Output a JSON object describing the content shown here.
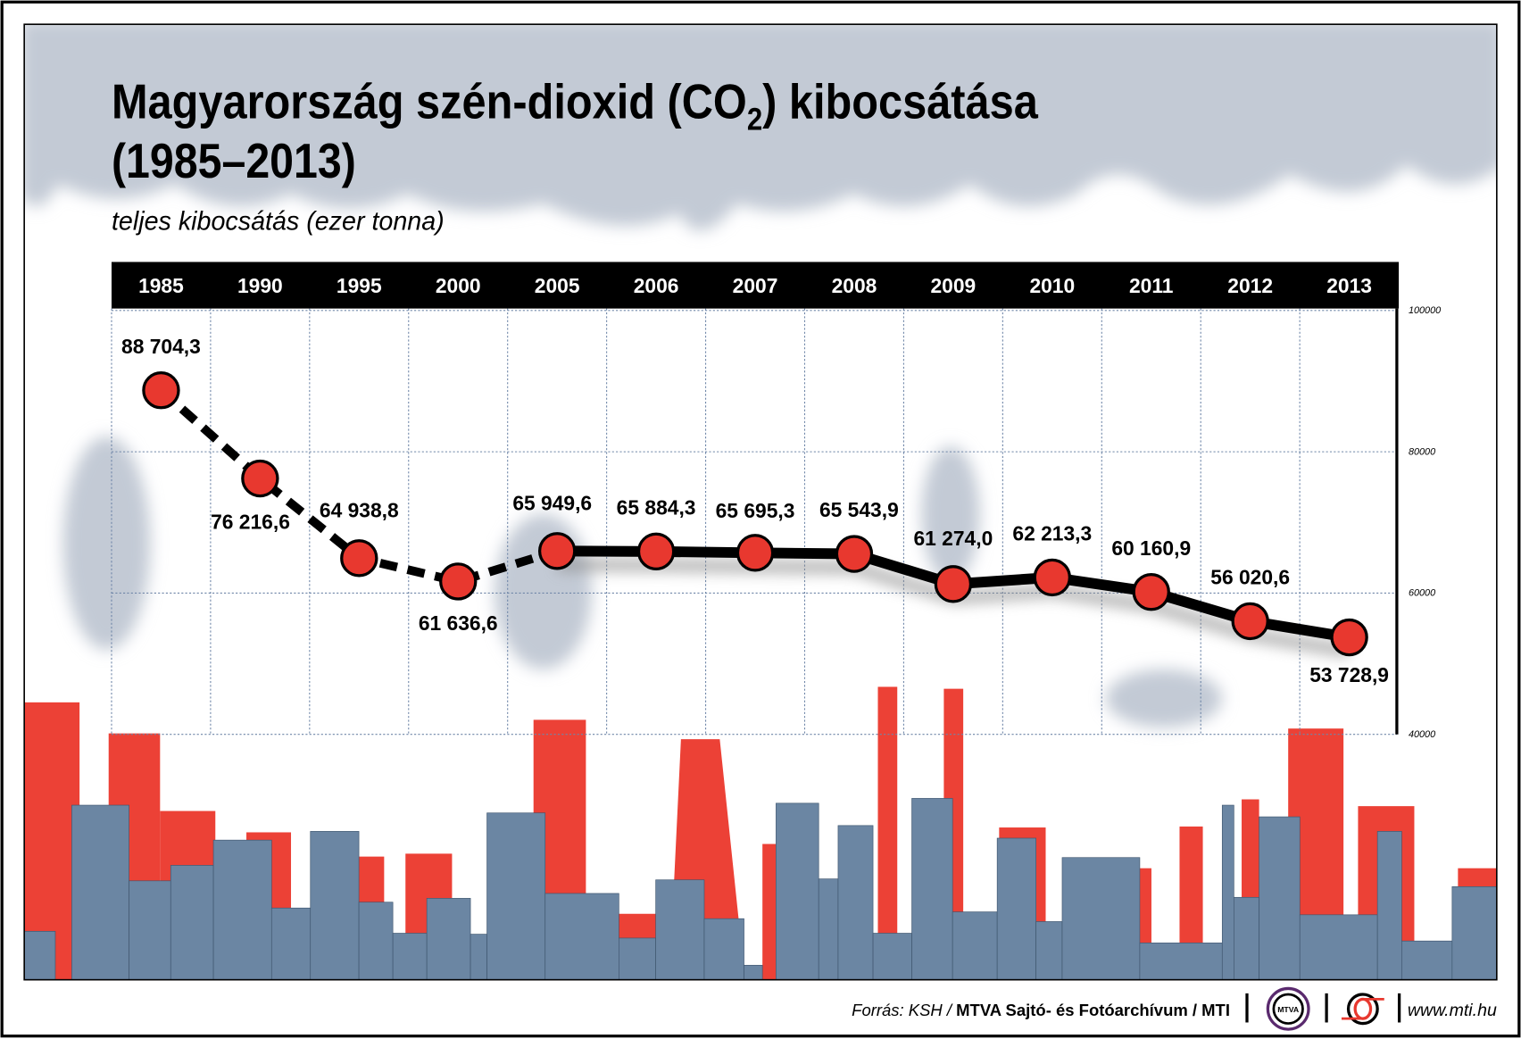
{
  "title": {
    "part1": "Magyarország szén-dioxid (CO",
    "sub": "2",
    "part2": ") kibocsátása",
    "line2": "(1985–2013)"
  },
  "subtitle": "teljes kibocsátás (ezer tonna)",
  "chart_data": {
    "type": "line",
    "title": "Magyarország szén-dioxid (CO2) kibocsátása (1985–2013)",
    "ylabel": "teljes kibocsátás (ezer tonna)",
    "categories": [
      "1985",
      "1990",
      "1995",
      "2000",
      "2005",
      "2006",
      "2007",
      "2008",
      "2009",
      "2010",
      "2011",
      "2012",
      "2013"
    ],
    "values": [
      88704.3,
      76216.6,
      64938.8,
      61636.6,
      65949.6,
      65884.3,
      65695.3,
      65543.9,
      61274.0,
      62213.3,
      60160.9,
      56020.6,
      53728.9
    ],
    "data_labels": [
      "88 704,3",
      "76 216,6",
      "64 938,8",
      "61 636,6",
      "65 949,6",
      "65 884,3",
      "65 695,3",
      "65 543,9",
      "61 274,0",
      "62 213,3",
      "60 160,9",
      "56 020,6",
      "53 728,9"
    ],
    "line_style": "dashed 1985–2005, solid 2005–2013",
    "ylim": [
      40000,
      100000
    ],
    "yticks": [
      "100000",
      "80000",
      "60000",
      "40000"
    ],
    "ytick_values": [
      100000,
      80000,
      60000,
      40000
    ],
    "grid": true,
    "colors": {
      "line": "#000000",
      "marker": "#e8382f",
      "header": "#000000"
    }
  },
  "footer": {
    "source_prefix": "Forrás: KSH / ",
    "source_bold": "MTVA Sajtó- és Fotóarchívum / MTI",
    "mtva_logo": "MTVA",
    "url": "www.mti.hu"
  },
  "colors": {
    "red": "#ec4136",
    "blue": "#6b86a3",
    "cloud": "#c3cad5"
  }
}
